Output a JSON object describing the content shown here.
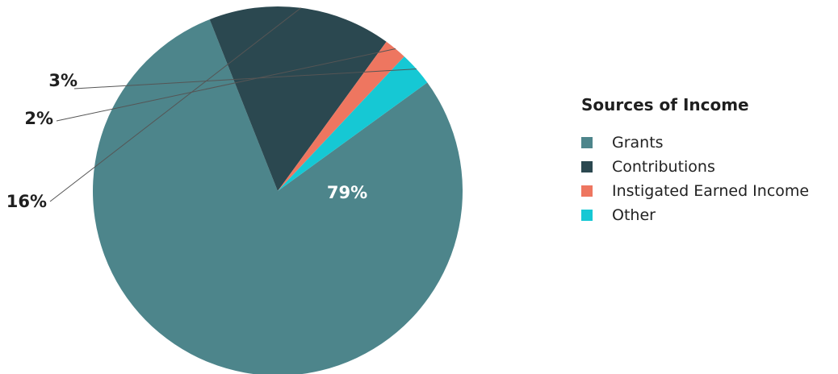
{
  "chart_data": {
    "type": "pie",
    "legend_title": "Sources of Income",
    "legend_placement": "right",
    "slices": [
      {
        "name": "Grants",
        "value": 79,
        "label": "79%",
        "color": "#4d858b"
      },
      {
        "name": "Contributions",
        "value": 16,
        "label": "16%",
        "color": "#2b4850"
      },
      {
        "name": "Instigated Earned Income",
        "value": 2,
        "label": "2%",
        "color": "#ee7660"
      },
      {
        "name": "Other",
        "value": 3,
        "label": "3%",
        "color": "#16c8d4"
      }
    ]
  }
}
